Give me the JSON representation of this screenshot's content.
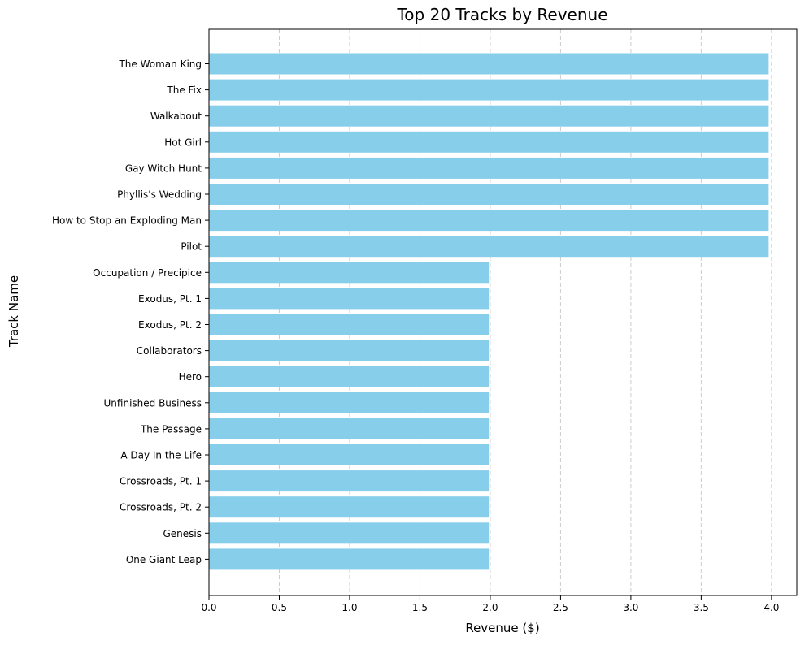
{
  "chart_data": {
    "type": "bar",
    "orientation": "horizontal",
    "title": "Top 20 Tracks by Revenue",
    "xlabel": "Revenue ($)",
    "ylabel": "Track Name",
    "xlim": [
      0,
      4.18
    ],
    "xticks": [
      "0.0",
      "0.5",
      "1.0",
      "1.5",
      "2.0",
      "2.5",
      "3.0",
      "3.5",
      "4.0"
    ],
    "grid": "x-dashed",
    "bar_color": "#87ceeb",
    "categories": [
      "The Woman King",
      "The Fix",
      "Walkabout",
      "Hot Girl",
      "Gay Witch Hunt",
      "Phyllis's Wedding",
      "How to Stop an Exploding Man",
      "Pilot",
      "Occupation / Precipice",
      "Exodus, Pt. 1",
      "Exodus, Pt. 2",
      "Collaborators",
      "Hero",
      "Unfinished Business",
      "The Passage",
      "A Day In the Life",
      "Crossroads, Pt. 1",
      "Crossroads, Pt. 2",
      "Genesis",
      "One Giant Leap"
    ],
    "values": [
      3.98,
      3.98,
      3.98,
      3.98,
      3.98,
      3.98,
      3.98,
      3.98,
      1.99,
      1.99,
      1.99,
      1.99,
      1.99,
      1.99,
      1.99,
      1.99,
      1.99,
      1.99,
      1.99,
      1.99
    ]
  }
}
